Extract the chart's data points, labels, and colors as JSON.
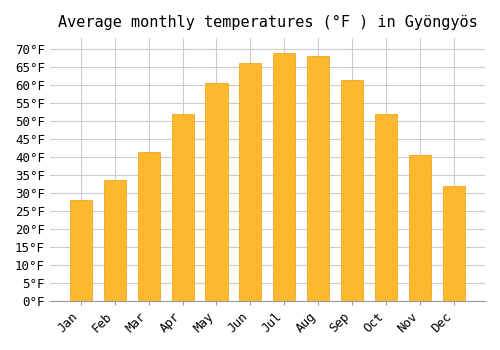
{
  "title": "Average monthly temperatures (°F ) in Gyöngyös",
  "months": [
    "Jan",
    "Feb",
    "Mar",
    "Apr",
    "May",
    "Jun",
    "Jul",
    "Aug",
    "Sep",
    "Oct",
    "Nov",
    "Dec"
  ],
  "values": [
    28,
    33.5,
    41.5,
    52,
    60.5,
    66,
    69,
    68,
    61.5,
    52,
    40.5,
    32
  ],
  "bar_color": "#FDB830",
  "bar_edge_color": "#E8A010",
  "background_color": "#FFFFFF",
  "grid_color": "#CCCCCC",
  "yticks": [
    0,
    5,
    10,
    15,
    20,
    25,
    30,
    35,
    40,
    45,
    50,
    55,
    60,
    65,
    70
  ],
  "ylim": [
    0,
    73
  ],
  "ylabel_format": "°F",
  "title_fontsize": 11,
  "tick_fontsize": 9,
  "font_family": "monospace"
}
